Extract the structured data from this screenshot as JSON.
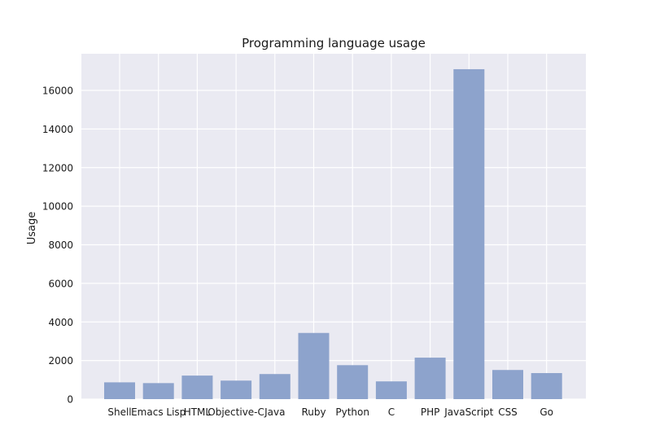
{
  "chart_data": {
    "type": "bar",
    "title": "Programming language usage",
    "xlabel": "",
    "ylabel": "Usage",
    "categories": [
      "Shell",
      "Emacs Lisp",
      "HTML",
      "Objective-C",
      "Java",
      "Ruby",
      "Python",
      "C",
      "PHP",
      "JavaScript",
      "CSS",
      "Go"
    ],
    "values": [
      870,
      830,
      1220,
      960,
      1300,
      3430,
      1760,
      920,
      2150,
      17100,
      1510,
      1350
    ],
    "ylim": [
      0,
      17900
    ],
    "yticks": [
      0,
      2000,
      4000,
      6000,
      8000,
      10000,
      12000,
      14000,
      16000
    ],
    "grid": true,
    "legend": "none",
    "colors": {
      "bar": "#8da3cc",
      "plot_background": "#eaeaf2",
      "grid": "#ffffff",
      "text": "#1a1a1a"
    }
  }
}
